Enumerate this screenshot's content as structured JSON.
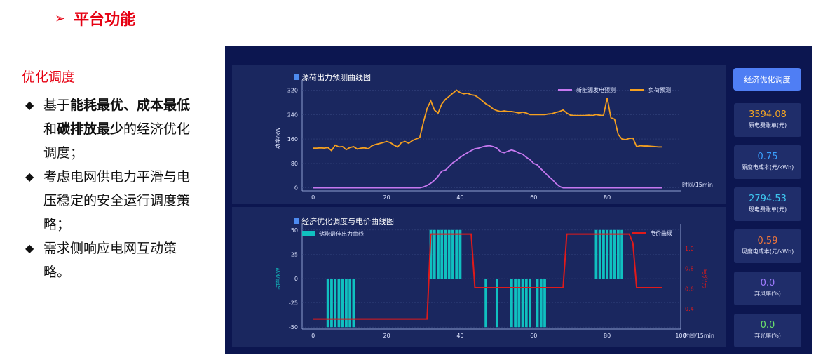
{
  "heading": {
    "arrow": "➢",
    "title": "平台功能"
  },
  "section_title": "优化调度",
  "bullets": [
    {
      "parts": [
        {
          "t": "基于",
          "b": false
        },
        {
          "t": "能耗最优、成本最低",
          "b": true
        },
        {
          "t": "和",
          "b": false
        },
        {
          "t": "碳排放最少",
          "b": true
        },
        {
          "t": "的经济优化调度；",
          "b": false
        }
      ]
    },
    {
      "parts": [
        {
          "t": "考虑电网供电力平滑与电压稳定的安全运行调度策略；",
          "b": false
        }
      ]
    },
    {
      "parts": [
        {
          "t": "需求侧响应电网互动策略。",
          "b": false
        }
      ]
    }
  ],
  "dashboard": {
    "button_label": "经济优化调度",
    "cards": [
      {
        "value": "3594.08",
        "label": "原电费账单(元)",
        "color": "#f5a623"
      },
      {
        "value": "0.75",
        "label": "原度电成本(元/kWh)",
        "color": "#3aa0ff"
      },
      {
        "value": "2794.53",
        "label": "现电费账单(元)",
        "color": "#3ec7f0"
      },
      {
        "value": "0.59",
        "label": "现度电成本(元/kWh)",
        "color": "#f0763a"
      },
      {
        "value": "0.0",
        "label": "弃风率(%)",
        "color": "#9f7bff"
      },
      {
        "value": "0.0",
        "label": "弃光率(%)",
        "color": "#6ce36c"
      }
    ]
  },
  "colors": {
    "pv": "#c678f0",
    "load": "#f5a020",
    "storage": "#10c0c0",
    "price": "#e01a1a"
  },
  "chart_data": [
    {
      "type": "line",
      "title": "源荷出力预测曲线图",
      "xlabel": "时间/15min",
      "ylabel": "功率/kW",
      "xlim": [
        -3,
        100
      ],
      "ylim": [
        -10,
        335
      ],
      "xticks": [
        0,
        20,
        40,
        60,
        80
      ],
      "yticks": [
        0,
        80,
        160,
        240,
        320
      ],
      "legend_position": "top-right",
      "series": [
        {
          "name": "新能源发电预测",
          "key": "pv",
          "x": [
            0,
            29,
            30,
            31,
            32,
            33,
            34,
            35,
            36,
            37,
            38,
            39,
            40,
            41,
            42,
            43,
            44,
            45,
            46,
            47,
            48,
            49,
            50,
            51,
            52,
            53,
            54,
            55,
            56,
            57,
            58,
            59,
            60,
            61,
            62,
            63,
            64,
            65,
            66,
            67,
            68,
            95
          ],
          "values": [
            0,
            0,
            3,
            8,
            15,
            25,
            38,
            55,
            58,
            70,
            82,
            90,
            100,
            108,
            115,
            122,
            128,
            130,
            134,
            137,
            138,
            135,
            130,
            118,
            115,
            120,
            124,
            120,
            114,
            110,
            100,
            92,
            80,
            75,
            62,
            50,
            38,
            28,
            15,
            5,
            0,
            0
          ]
        },
        {
          "name": "负荷预测",
          "key": "load",
          "x": [
            0,
            1,
            2,
            3,
            4,
            5,
            6,
            7,
            8,
            9,
            10,
            11,
            12,
            13,
            14,
            15,
            16,
            17,
            18,
            19,
            20,
            21,
            22,
            23,
            24,
            25,
            26,
            27,
            28,
            29,
            30,
            31,
            32,
            33,
            34,
            35,
            36,
            37,
            38,
            39,
            40,
            41,
            42,
            43,
            44,
            45,
            46,
            47,
            48,
            49,
            50,
            51,
            52,
            53,
            54,
            55,
            56,
            57,
            58,
            59,
            60,
            61,
            62,
            63,
            64,
            65,
            66,
            67,
            68,
            69,
            70,
            71,
            72,
            73,
            74,
            75,
            76,
            77,
            78,
            79,
            80,
            81,
            82,
            83,
            84,
            85,
            86,
            87,
            88,
            89,
            90,
            91,
            92,
            93,
            94,
            95
          ],
          "values": [
            130,
            130,
            131,
            130,
            132,
            122,
            140,
            134,
            135,
            125,
            132,
            135,
            127,
            130,
            131,
            128,
            138,
            142,
            145,
            148,
            152,
            148,
            140,
            134,
            148,
            152,
            146,
            155,
            160,
            165,
            215,
            260,
            285,
            255,
            245,
            275,
            290,
            300,
            310,
            320,
            312,
            308,
            310,
            305,
            303,
            295,
            285,
            275,
            268,
            258,
            253,
            250,
            252,
            250,
            250,
            248,
            245,
            248,
            245,
            240,
            240,
            240,
            240,
            240,
            242,
            243,
            247,
            250,
            255,
            245,
            238,
            237,
            237,
            237,
            237,
            238,
            237,
            240,
            238,
            237,
            295,
            230,
            225,
            175,
            160,
            158,
            162,
            163,
            135,
            138,
            137,
            137,
            136,
            135,
            134,
            134
          ]
        }
      ]
    },
    {
      "type": "bar+line",
      "title": "经济优化调度与电价曲线图",
      "xlabel": "时间/15min",
      "ylabel": "功率/kW",
      "y2label": "电价/元",
      "xlim": [
        -3,
        100
      ],
      "ylim": [
        -52,
        52
      ],
      "y2lim": [
        0.2,
        1.2
      ],
      "xticks": [
        0,
        20,
        40,
        60,
        80,
        100
      ],
      "yticks": [
        -50,
        -25,
        0,
        25,
        50
      ],
      "y2ticks": [
        0.4,
        0.6,
        0.8,
        1.0
      ],
      "legend_position": "top",
      "series": [
        {
          "name": "储能最佳出力曲线",
          "key": "storage",
          "type": "bar",
          "x": [
            4,
            5,
            6,
            7,
            8,
            9,
            10,
            11,
            32,
            33,
            34,
            35,
            36,
            37,
            38,
            39,
            40,
            47,
            50,
            54,
            55,
            56,
            57,
            58,
            59,
            61,
            62,
            63,
            77,
            78,
            79,
            80,
            81,
            82,
            83,
            84
          ],
          "values": [
            -50,
            -50,
            -50,
            -50,
            -50,
            -50,
            -50,
            -50,
            50,
            50,
            50,
            50,
            50,
            50,
            50,
            50,
            50,
            -50,
            -50,
            -50,
            -50,
            -50,
            -50,
            -50,
            -50,
            -50,
            -50,
            -50,
            50,
            50,
            50,
            50,
            50,
            50,
            50,
            50
          ]
        },
        {
          "name": "电价曲线",
          "key": "price",
          "type": "line",
          "x": [
            0,
            31,
            32,
            43,
            44,
            68,
            69,
            86,
            87,
            88,
            95
          ],
          "values": [
            0.3,
            0.3,
            1.14,
            1.14,
            0.61,
            0.61,
            1.14,
            1.14,
            1.05,
            0.61,
            0.61
          ]
        }
      ]
    }
  ]
}
